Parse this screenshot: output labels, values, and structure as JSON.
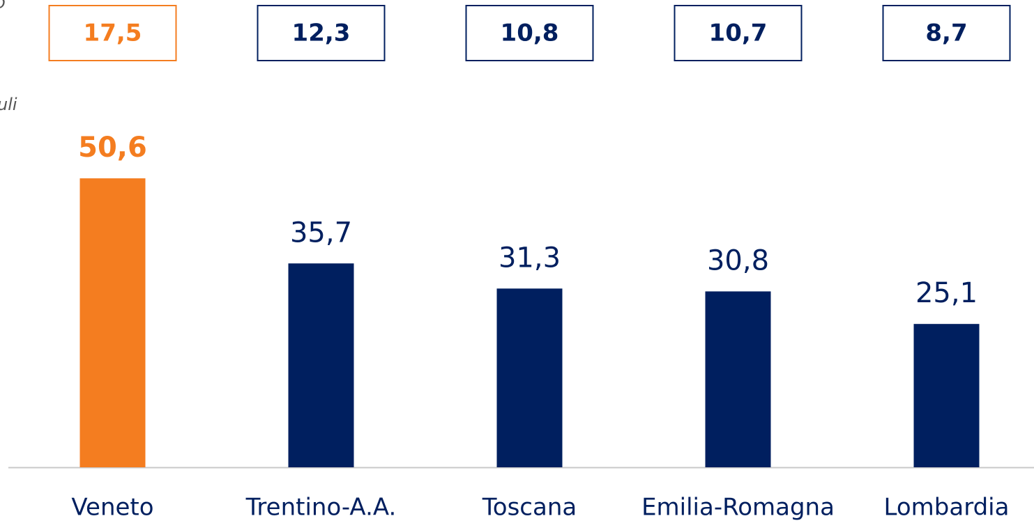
{
  "chart_data": {
    "type": "bar",
    "annotations": [
      "o",
      "uli"
    ],
    "categories": [
      "Veneto",
      "Trentino-A.A.",
      "Toscana",
      "Emilia-Romagna",
      "Lombardia"
    ],
    "values": [
      50.6,
      35.7,
      31.3,
      30.8,
      25.1
    ],
    "value_labels": [
      "50,6",
      "35,7",
      "31,3",
      "30,8",
      "25,1"
    ],
    "box_values": [
      17.5,
      12.3,
      10.8,
      10.7,
      8.7
    ],
    "box_labels": [
      "17,5",
      "12,3",
      "10,8",
      "10,7",
      "8,7"
    ],
    "colors": [
      "#f47d20",
      "#001f5f",
      "#001f5f",
      "#001f5f",
      "#001f5f"
    ],
    "ylim": [
      0,
      60
    ]
  }
}
